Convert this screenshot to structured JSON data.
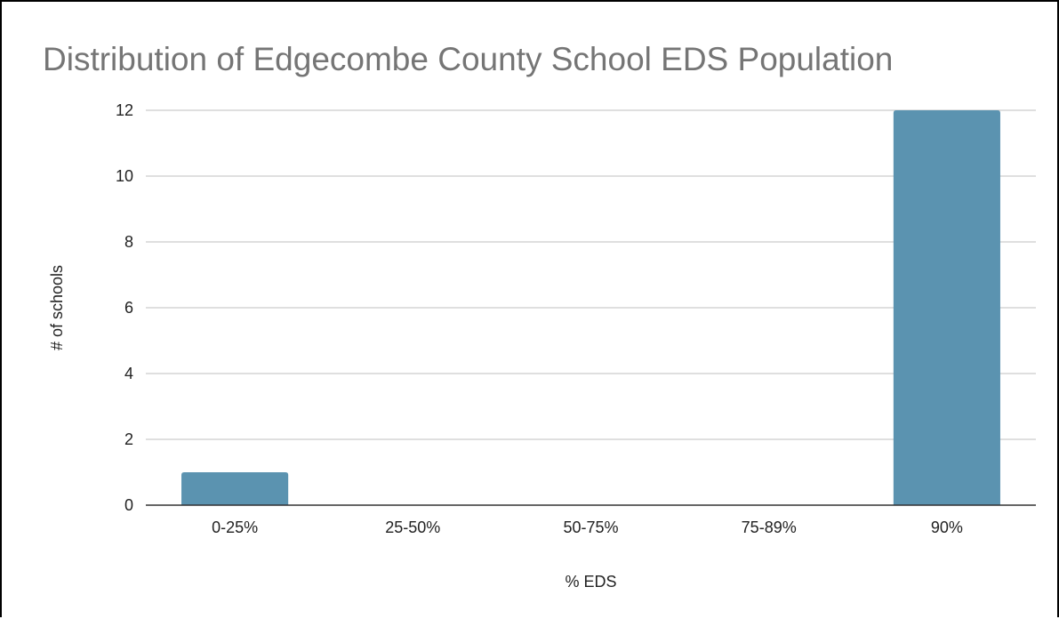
{
  "chart_data": {
    "type": "bar",
    "title": "Distribution of Edgecombe County School EDS Population",
    "xlabel": "% EDS",
    "ylabel": "# of schools",
    "categories": [
      "0-25%",
      "25-50%",
      "50-75%",
      "75-89%",
      "90%"
    ],
    "values": [
      1,
      0,
      0,
      0,
      12
    ],
    "ylim": [
      0,
      12
    ],
    "yticks": [
      0,
      2,
      4,
      6,
      8,
      10,
      12
    ],
    "grid": true,
    "legend": "none",
    "colors": {
      "bar": "#5b93b0",
      "title": "#757575",
      "grid": "#cccccc",
      "axis": "#333333"
    }
  }
}
